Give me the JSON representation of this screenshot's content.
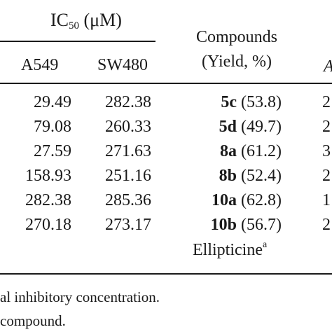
{
  "header": {
    "group_label_prefix": "IC",
    "group_label_sub": "50",
    "group_label_suffix": "(μM)",
    "col_a549": "A549",
    "col_sw480": "SW480",
    "col_compounds_line1": "Compounds",
    "col_compounds_line2": "(Yield, %)",
    "col_cut": "A"
  },
  "rows": [
    {
      "a549": "29.49",
      "sw480": "282.38",
      "compound": "5c",
      "yield": "(53.8)",
      "cut": "2"
    },
    {
      "a549": "79.08",
      "sw480": "260.33",
      "compound": "5d",
      "yield": "(49.7)",
      "cut": "2"
    },
    {
      "a549": "27.59",
      "sw480": "271.63",
      "compound": "8a",
      "yield": "(61.2)",
      "cut": "3"
    },
    {
      "a549": "158.93",
      "sw480": "251.16",
      "compound": "8b",
      "yield": "(52.4)",
      "cut": "2"
    },
    {
      "a549": "282.38",
      "sw480": "285.36",
      "compound": "10a",
      "yield": "(62.8)",
      "cut": "1"
    },
    {
      "a549": "270.18",
      "sw480": "273.17",
      "compound": "10b",
      "yield": "(56.7)",
      "cut": "2"
    }
  ],
  "reference": {
    "name": "Ellipticine",
    "mark": "a"
  },
  "footnotes": {
    "line1": "al inhibitory concentration.",
    "line2": "compound."
  }
}
